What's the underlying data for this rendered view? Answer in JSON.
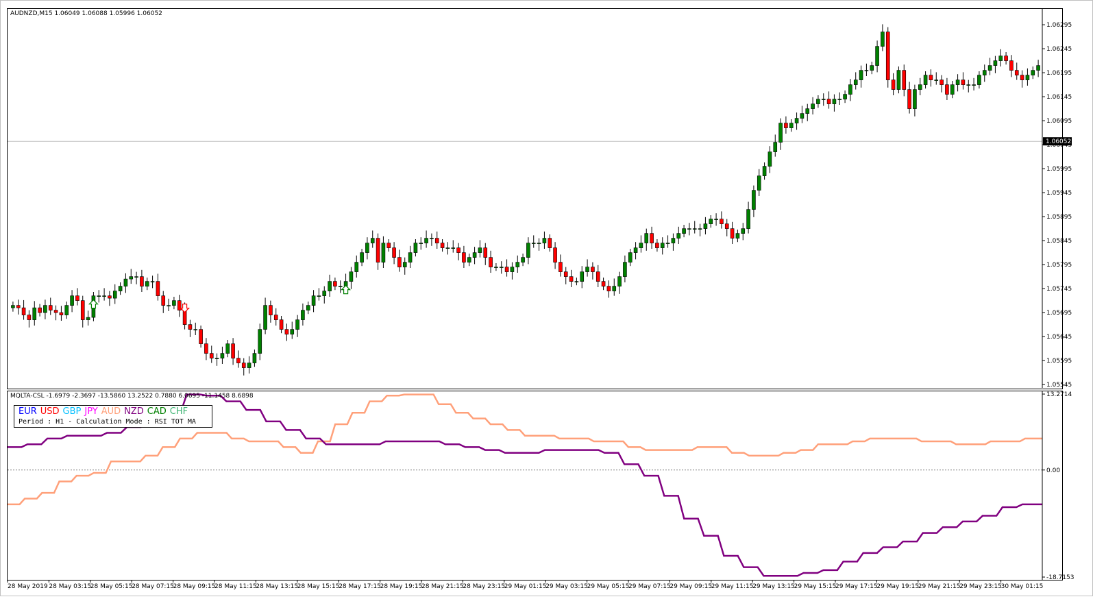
{
  "window": {
    "main_title": "AUDNZD,M15  1.06049 1.06088 1.05996 1.06052",
    "indicator_title": "MQLTA-CSL -1.6979 -2.3697 -13.5860 13.2522 0.7880 6.0695 -11.1458 8.6898",
    "current_price": "1.06052"
  },
  "legend": {
    "currencies": [
      {
        "code": "EUR",
        "color": "#0000ff"
      },
      {
        "code": "USD",
        "color": "#ff0000"
      },
      {
        "code": "GBP",
        "color": "#00bfff"
      },
      {
        "code": "JPY",
        "color": "#ff00ff"
      },
      {
        "code": "AUD",
        "color": "#ffa07a"
      },
      {
        "code": "NZD",
        "color": "#800080"
      },
      {
        "code": "CAD",
        "color": "#008000"
      },
      {
        "code": "CHF",
        "color": "#3cb371"
      }
    ],
    "subtitle": "Period : H1 - Calculation Mode : RSI TOT MA"
  },
  "chart_data": [
    {
      "type": "candlestick",
      "symbol": "AUDNZD",
      "timeframe": "M15",
      "yaxis_ticks": [
        "1.06295",
        "1.06245",
        "1.06195",
        "1.06145",
        "1.06095",
        "1.06045",
        "1.05995",
        "1.05945",
        "1.05895",
        "1.05845",
        "1.05795",
        "1.05745",
        "1.05695",
        "1.05645",
        "1.05595",
        "1.05545"
      ],
      "ylim": [
        1.05538,
        1.06328
      ],
      "current_price_line": 1.06052,
      "colors": {
        "bull": "#008000",
        "bear": "#ff0000",
        "wick": "#000000"
      },
      "signals": [
        {
          "type": "buy",
          "index": 15
        },
        {
          "type": "sell",
          "index": 32
        },
        {
          "type": "buy",
          "index": 62
        }
      ],
      "closes": [
        1.0571,
        1.05705,
        1.0569,
        1.0568,
        1.05705,
        1.05695,
        1.0571,
        1.057,
        1.05695,
        1.0569,
        1.0571,
        1.0573,
        1.0572,
        1.0568,
        1.05685,
        1.0573,
        1.0573,
        1.0573,
        1.05725,
        1.0574,
        1.0575,
        1.05765,
        1.0577,
        1.0577,
        1.0575,
        1.0576,
        1.0576,
        1.0573,
        1.0571,
        1.0571,
        1.0572,
        1.057,
        1.0567,
        1.0566,
        1.0566,
        1.0563,
        1.0561,
        1.056,
        1.056,
        1.0561,
        1.0563,
        1.056,
        1.0559,
        1.0558,
        1.0559,
        1.0561,
        1.0566,
        1.0571,
        1.0569,
        1.0568,
        1.0566,
        1.0565,
        1.0566,
        1.0568,
        1.057,
        1.0571,
        1.0573,
        1.0573,
        1.0574,
        1.0576,
        1.0575,
        1.0575,
        1.0576,
        1.0578,
        1.058,
        1.0582,
        1.0584,
        1.0585,
        1.058,
        1.0584,
        1.0583,
        1.0581,
        1.0579,
        1.058,
        1.0582,
        1.0584,
        1.0584,
        1.0585,
        1.0585,
        1.0584,
        1.0583,
        1.0583,
        1.0583,
        1.0582,
        1.058,
        1.0581,
        1.0582,
        1.0583,
        1.0581,
        1.0579,
        1.0579,
        1.0579,
        1.0578,
        1.0579,
        1.058,
        1.0581,
        1.0584,
        1.0584,
        1.0584,
        1.0585,
        1.0583,
        1.058,
        1.0578,
        1.0577,
        1.0576,
        1.0576,
        1.0578,
        1.0579,
        1.0578,
        1.0576,
        1.0575,
        1.0574,
        1.0575,
        1.0577,
        1.058,
        1.0582,
        1.0583,
        1.0584,
        1.0586,
        1.0584,
        1.0583,
        1.0584,
        1.0584,
        1.0585,
        1.0586,
        1.0587,
        1.0587,
        1.0587,
        1.0587,
        1.0588,
        1.0589,
        1.0589,
        1.0588,
        1.0587,
        1.0585,
        1.0586,
        1.0587,
        1.0591,
        1.0595,
        1.0598,
        1.06,
        1.0603,
        1.0605,
        1.0609,
        1.0608,
        1.0609,
        1.061,
        1.0611,
        1.0612,
        1.0613,
        1.0614,
        1.0614,
        1.0613,
        1.0614,
        1.0614,
        1.0615,
        1.0617,
        1.0618,
        1.062,
        1.062,
        1.0621,
        1.0625,
        1.0628,
        1.0618,
        1.0616,
        1.062,
        1.0616,
        1.0612,
        1.0616,
        1.0617,
        1.0619,
        1.0618,
        1.0618,
        1.0617,
        1.0615,
        1.0617,
        1.0618,
        1.0617,
        1.0617,
        1.0617,
        1.0619,
        1.062,
        1.0621,
        1.0622,
        1.0623,
        1.0622,
        1.062,
        1.0619,
        1.0618,
        1.0619,
        1.062,
        1.0621
      ]
    },
    {
      "type": "line",
      "name": "MQLTA-CSL",
      "yaxis_ticks": [
        "13.2714",
        "0.00",
        "-18.7153"
      ],
      "ylim": [
        -18.7153,
        13.2714
      ],
      "zero_line": 0.0,
      "series": [
        {
          "name": "AUD",
          "color": "#ffa07a",
          "values": [
            -6.0,
            -5.0,
            -4.0,
            -2.0,
            -1.0,
            -0.5,
            1.5,
            1.5,
            2.5,
            4.0,
            5.5,
            6.5,
            6.5,
            5.5,
            5.0,
            5.0,
            4.0,
            3.0,
            5.0,
            8.0,
            10.0,
            12.0,
            13.0,
            13.2,
            13.2,
            11.5,
            10.0,
            9.0,
            8.0,
            7.0,
            6.0,
            6.0,
            5.5,
            5.5,
            5.0,
            5.0,
            4.0,
            3.5,
            3.5,
            3.5,
            4.0,
            4.0,
            3.0,
            2.5,
            2.5,
            3.0,
            3.5,
            4.5,
            4.5,
            5.0,
            5.5,
            5.5,
            5.5,
            5.0,
            5.0,
            4.5,
            4.5,
            5.0,
            5.0,
            5.5
          ]
        },
        {
          "name": "NZD",
          "color": "#800080",
          "values": [
            4.0,
            4.5,
            5.5,
            6.0,
            6.0,
            6.5,
            7.5,
            8.5,
            10.0,
            13.2,
            13.0,
            12.0,
            10.5,
            8.5,
            7.0,
            5.5,
            4.5,
            4.5,
            4.5,
            5.0,
            5.0,
            5.0,
            4.5,
            4.0,
            3.5,
            3.0,
            3.0,
            3.5,
            3.5,
            3.5,
            3.0,
            1.0,
            -1.0,
            -4.5,
            -8.5,
            -11.5,
            -15.0,
            -17.0,
            -18.5,
            -18.5,
            -18.0,
            -17.5,
            -16.0,
            -14.5,
            -13.5,
            -12.5,
            -11.0,
            -10.0,
            -9.0,
            -8.0,
            -6.5,
            -6.0
          ]
        }
      ]
    }
  ],
  "xaxis_labels": [
    "28 May 2019",
    "28 May 03:15",
    "28 May 05:15",
    "28 May 07:15",
    "28 May 09:15",
    "28 May 11:15",
    "28 May 13:15",
    "28 May 15:15",
    "28 May 17:15",
    "28 May 19:15",
    "28 May 21:15",
    "28 May 23:15",
    "29 May 01:15",
    "29 May 03:15",
    "29 May 05:15",
    "29 May 07:15",
    "29 May 09:15",
    "29 May 11:15",
    "29 May 13:15",
    "29 May 15:15",
    "29 May 17:15",
    "29 May 19:15",
    "29 May 21:15",
    "29 May 23:15",
    "30 May 01:15"
  ]
}
